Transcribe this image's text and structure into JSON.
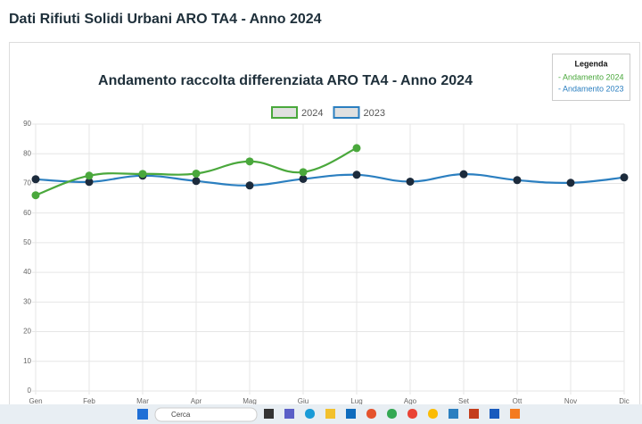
{
  "page": {
    "title": "Dati Rifiuti Solidi Urbani ARO TA4 - Anno 2024"
  },
  "legend_box": {
    "title": "Legenda",
    "items": [
      "- Andamento 2024",
      "- Andamento 2023"
    ]
  },
  "taskbar": {
    "search": "Cerca"
  },
  "chart_data": {
    "type": "line",
    "title": "Andamento raccolta differenziata ARO TA4 - Anno 2024",
    "categories": [
      "Gen",
      "Feb",
      "Mar",
      "Apr",
      "Mag",
      "Giu",
      "Lug",
      "Ago",
      "Set",
      "Ott",
      "Nov",
      "Dic"
    ],
    "series": [
      {
        "name": "2024",
        "color": "#4aa83c",
        "point_color": "#4aa83c",
        "values": [
          66,
          72.6,
          73.2,
          73.3,
          77.4,
          73.8,
          81.9,
          null,
          null,
          null,
          null,
          null
        ]
      },
      {
        "name": "2023",
        "color": "#2b7fc0",
        "point_color": "#1c2b3c",
        "values": [
          71.4,
          70.5,
          72.6,
          70.8,
          69.3,
          71.5,
          72.9,
          70.6,
          73.1,
          71.1,
          70.2,
          72
        ]
      }
    ],
    "ylim": [
      0,
      90
    ],
    "yticks": [
      0,
      10,
      20,
      30,
      40,
      50,
      60,
      70,
      80,
      90
    ],
    "grid": true
  }
}
